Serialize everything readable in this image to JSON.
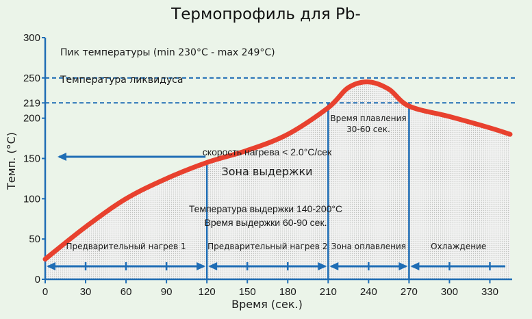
{
  "chart_data": {
    "type": "line",
    "title": "Термопрофиль для Pb-",
    "xlabel": "Время (сек.)",
    "ylabel": "Темп. (°С)",
    "xlim": [
      0,
      345
    ],
    "ylim": [
      0,
      300
    ],
    "x_ticks": [
      "0",
      "30",
      "60",
      "90",
      "120",
      "150",
      "180",
      "210",
      "240",
      "270",
      "300",
      "330"
    ],
    "y_ticks": [
      "0",
      "50",
      "100",
      "150",
      "200",
      "219",
      "250",
      "300"
    ],
    "grid": false,
    "series": [
      {
        "color": "#e8412e",
        "points": [
          [
            0,
            25
          ],
          [
            30,
            65
          ],
          [
            60,
            100
          ],
          [
            90,
            125
          ],
          [
            120,
            145
          ],
          [
            150,
            160
          ],
          [
            180,
            180
          ],
          [
            210,
            213
          ],
          [
            225,
            238
          ],
          [
            240,
            245
          ],
          [
            255,
            236
          ],
          [
            270,
            215
          ],
          [
            300,
            202
          ],
          [
            330,
            188
          ],
          [
            345,
            180
          ]
        ]
      }
    ],
    "reference_lines": [
      {
        "y": 250,
        "label": "Пик температуры (min 230°C - max 249°C)"
      },
      {
        "y": 219,
        "label": "Температура ликвидуса"
      }
    ],
    "zone_boundaries": [
      120,
      210,
      270
    ],
    "zones": [
      {
        "x_start": 0,
        "x_end": 120,
        "label": "Предварительный нагрев 1"
      },
      {
        "x_start": 120,
        "x_end": 210,
        "label": "Предварительный нагрев 2"
      },
      {
        "x_start": 210,
        "x_end": 270,
        "label": "Зона оплавления"
      },
      {
        "x_start": 270,
        "x_end": 345,
        "label": "Охлаждение"
      }
    ],
    "annotations": {
      "heating_rate": "скорость нагрева < 2.0°С/сек",
      "soak_zone": "Зона выдержки",
      "soak_temp": "Температура выдержки 140-200°С",
      "soak_time": "Время выдержки 60-90 сек.",
      "melt_time_line1": "Время плавления",
      "melt_time_line2": "30-60 сек."
    },
    "colors": {
      "curve": "#e8412e",
      "arrows": "#1f6db5",
      "reference": "#1f6db5",
      "axis": "#1f6db5",
      "fill": "#c9c9c9",
      "background": "#ebf4e9"
    }
  }
}
